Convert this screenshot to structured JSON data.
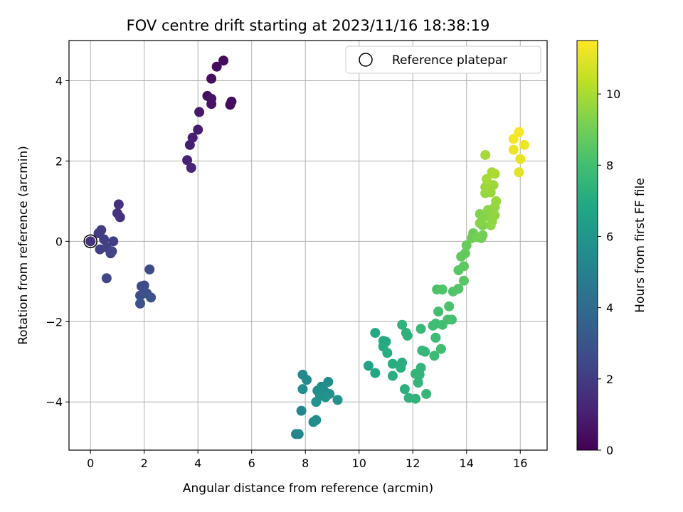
{
  "chart_data": {
    "type": "scatter",
    "title": "FOV centre drift starting at 2023/11/16 18:38:19",
    "xlabel": "Angular distance from reference (arcmin)",
    "ylabel": "Rotation from reference (arcmin)",
    "xlim": [
      -0.8,
      17
    ],
    "ylim": [
      -5.2,
      5
    ],
    "xticks": [
      0,
      2,
      4,
      6,
      8,
      10,
      12,
      14,
      16
    ],
    "yticks": [
      -4,
      -2,
      0,
      2,
      4
    ],
    "xtick_labels": [
      "0",
      "2",
      "4",
      "6",
      "8",
      "10",
      "12",
      "14",
      "16"
    ],
    "ytick_labels": [
      "−4",
      "−2",
      "0",
      "2",
      "4"
    ],
    "grid": true,
    "legend": {
      "position": "top-right",
      "entries": [
        "Reference platepar"
      ]
    },
    "colorbar": {
      "label": "Hours from first FF file",
      "min": 0,
      "max": 11.5,
      "colormap": "viridis",
      "ticks": [
        0,
        2,
        4,
        6,
        8,
        10
      ],
      "tick_labels": [
        "0",
        "2",
        "4",
        "6",
        "8",
        "10"
      ]
    },
    "reference_point": {
      "x": 0,
      "y": 0
    },
    "points": [
      {
        "x": 4.95,
        "y": 4.5,
        "h": 0.3
      },
      {
        "x": 4.7,
        "y": 4.35,
        "h": 0.4
      },
      {
        "x": 4.5,
        "y": 4.05,
        "h": 0.5
      },
      {
        "x": 4.35,
        "y": 3.62,
        "h": 0.5
      },
      {
        "x": 4.5,
        "y": 3.55,
        "h": 0.6
      },
      {
        "x": 4.5,
        "y": 3.42,
        "h": 0.6
      },
      {
        "x": 5.25,
        "y": 3.48,
        "h": 0.4
      },
      {
        "x": 5.2,
        "y": 3.4,
        "h": 0.4
      },
      {
        "x": 4.05,
        "y": 3.22,
        "h": 0.8
      },
      {
        "x": 4.0,
        "y": 2.78,
        "h": 0.9
      },
      {
        "x": 3.8,
        "y": 2.58,
        "h": 1.0
      },
      {
        "x": 3.7,
        "y": 2.4,
        "h": 1.0
      },
      {
        "x": 3.6,
        "y": 2.02,
        "h": 1.1
      },
      {
        "x": 3.75,
        "y": 1.83,
        "h": 1.2
      },
      {
        "x": 1.05,
        "y": 0.92,
        "h": 1.6
      },
      {
        "x": 1.0,
        "y": 0.7,
        "h": 1.7
      },
      {
        "x": 1.1,
        "y": 0.6,
        "h": 1.7
      },
      {
        "x": 0.4,
        "y": 0.28,
        "h": 2.0
      },
      {
        "x": 0.3,
        "y": 0.2,
        "h": 2.0
      },
      {
        "x": 0.5,
        "y": 0.05,
        "h": 2.1
      },
      {
        "x": 0.85,
        "y": 0.0,
        "h": 2.1
      },
      {
        "x": 0.35,
        "y": -0.2,
        "h": 2.2
      },
      {
        "x": 0.6,
        "y": -0.15,
        "h": 2.2
      },
      {
        "x": 0.75,
        "y": -0.3,
        "h": 2.3
      },
      {
        "x": 0.8,
        "y": -0.25,
        "h": 2.3
      },
      {
        "x": 0.6,
        "y": -0.92,
        "h": 2.4
      },
      {
        "x": 2.2,
        "y": -0.7,
        "h": 2.6
      },
      {
        "x": 2.0,
        "y": -1.1,
        "h": 2.7
      },
      {
        "x": 1.9,
        "y": -1.12,
        "h": 2.7
      },
      {
        "x": 1.85,
        "y": -1.35,
        "h": 2.8
      },
      {
        "x": 2.1,
        "y": -1.3,
        "h": 2.8
      },
      {
        "x": 2.25,
        "y": -1.4,
        "h": 2.9
      },
      {
        "x": 1.85,
        "y": -1.55,
        "h": 2.9
      },
      {
        "x": 7.9,
        "y": -3.32,
        "h": 5.4
      },
      {
        "x": 8.05,
        "y": -3.45,
        "h": 5.4
      },
      {
        "x": 7.9,
        "y": -3.68,
        "h": 5.5
      },
      {
        "x": 8.85,
        "y": -3.5,
        "h": 5.6
      },
      {
        "x": 8.6,
        "y": -3.62,
        "h": 5.6
      },
      {
        "x": 8.45,
        "y": -3.72,
        "h": 5.6
      },
      {
        "x": 8.7,
        "y": -3.72,
        "h": 5.7
      },
      {
        "x": 8.9,
        "y": -3.8,
        "h": 5.7
      },
      {
        "x": 8.55,
        "y": -3.85,
        "h": 5.7
      },
      {
        "x": 8.75,
        "y": -3.88,
        "h": 5.8
      },
      {
        "x": 9.2,
        "y": -3.95,
        "h": 5.8
      },
      {
        "x": 8.4,
        "y": -4.0,
        "h": 5.8
      },
      {
        "x": 7.85,
        "y": -4.22,
        "h": 5.3
      },
      {
        "x": 8.4,
        "y": -4.45,
        "h": 5.5
      },
      {
        "x": 8.3,
        "y": -4.5,
        "h": 5.5
      },
      {
        "x": 7.65,
        "y": -4.8,
        "h": 5.2
      },
      {
        "x": 7.75,
        "y": -4.8,
        "h": 5.2
      },
      {
        "x": 10.6,
        "y": -2.28,
        "h": 6.9
      },
      {
        "x": 10.35,
        "y": -3.1,
        "h": 6.6
      },
      {
        "x": 10.6,
        "y": -3.28,
        "h": 6.7
      },
      {
        "x": 10.9,
        "y": -2.48,
        "h": 7.0
      },
      {
        "x": 11.0,
        "y": -2.5,
        "h": 7.0
      },
      {
        "x": 10.9,
        "y": -2.62,
        "h": 7.0
      },
      {
        "x": 11.05,
        "y": -2.78,
        "h": 7.1
      },
      {
        "x": 11.25,
        "y": -3.05,
        "h": 7.1
      },
      {
        "x": 11.6,
        "y": -3.02,
        "h": 7.2
      },
      {
        "x": 11.55,
        "y": -3.15,
        "h": 7.2
      },
      {
        "x": 11.25,
        "y": -3.35,
        "h": 7.2
      },
      {
        "x": 11.75,
        "y": -2.28,
        "h": 7.3
      },
      {
        "x": 11.6,
        "y": -2.08,
        "h": 7.4
      },
      {
        "x": 11.8,
        "y": -2.35,
        "h": 7.3
      },
      {
        "x": 11.7,
        "y": -3.68,
        "h": 7.3
      },
      {
        "x": 11.85,
        "y": -3.9,
        "h": 7.4
      },
      {
        "x": 12.1,
        "y": -3.92,
        "h": 7.4
      },
      {
        "x": 12.1,
        "y": -3.3,
        "h": 7.5
      },
      {
        "x": 12.3,
        "y": -3.15,
        "h": 7.5
      },
      {
        "x": 12.25,
        "y": -3.32,
        "h": 7.5
      },
      {
        "x": 12.2,
        "y": -3.52,
        "h": 7.5
      },
      {
        "x": 12.5,
        "y": -3.8,
        "h": 7.6
      },
      {
        "x": 12.35,
        "y": -2.72,
        "h": 7.6
      },
      {
        "x": 12.45,
        "y": -2.75,
        "h": 7.6
      },
      {
        "x": 12.3,
        "y": -2.18,
        "h": 7.7
      },
      {
        "x": 12.8,
        "y": -2.85,
        "h": 7.8
      },
      {
        "x": 12.85,
        "y": -2.4,
        "h": 7.8
      },
      {
        "x": 12.75,
        "y": -2.1,
        "h": 7.9
      },
      {
        "x": 12.85,
        "y": -2.05,
        "h": 7.9
      },
      {
        "x": 13.05,
        "y": -2.68,
        "h": 8.0
      },
      {
        "x": 12.95,
        "y": -1.75,
        "h": 8.0
      },
      {
        "x": 13.1,
        "y": -2.08,
        "h": 8.0
      },
      {
        "x": 13.3,
        "y": -1.95,
        "h": 8.1
      },
      {
        "x": 13.45,
        "y": -1.95,
        "h": 8.1
      },
      {
        "x": 13.35,
        "y": -1.62,
        "h": 8.2
      },
      {
        "x": 12.9,
        "y": -1.2,
        "h": 8.2
      },
      {
        "x": 13.1,
        "y": -1.2,
        "h": 8.3
      },
      {
        "x": 13.5,
        "y": -1.25,
        "h": 8.3
      },
      {
        "x": 13.7,
        "y": -1.18,
        "h": 8.4
      },
      {
        "x": 13.9,
        "y": -0.98,
        "h": 8.5
      },
      {
        "x": 13.7,
        "y": -0.72,
        "h": 8.5
      },
      {
        "x": 13.9,
        "y": -0.62,
        "h": 8.6
      },
      {
        "x": 13.8,
        "y": -0.38,
        "h": 8.7
      },
      {
        "x": 13.95,
        "y": -0.3,
        "h": 8.7
      },
      {
        "x": 14.0,
        "y": -0.1,
        "h": 8.8
      },
      {
        "x": 14.2,
        "y": 0.08,
        "h": 8.9
      },
      {
        "x": 14.25,
        "y": 0.2,
        "h": 8.9
      },
      {
        "x": 14.55,
        "y": 0.08,
        "h": 9.0
      },
      {
        "x": 14.6,
        "y": 0.15,
        "h": 9.0
      },
      {
        "x": 14.4,
        "y": 0.1,
        "h": 9.1
      },
      {
        "x": 14.6,
        "y": 0.4,
        "h": 9.2
      },
      {
        "x": 14.5,
        "y": 0.68,
        "h": 9.3
      },
      {
        "x": 14.7,
        "y": 0.62,
        "h": 9.4
      },
      {
        "x": 14.5,
        "y": 0.45,
        "h": 9.4
      },
      {
        "x": 14.8,
        "y": 0.78,
        "h": 9.5
      },
      {
        "x": 14.9,
        "y": 0.4,
        "h": 9.5
      },
      {
        "x": 14.95,
        "y": 0.5,
        "h": 9.6
      },
      {
        "x": 15.05,
        "y": 0.65,
        "h": 9.6
      },
      {
        "x": 15.05,
        "y": 0.85,
        "h": 9.6
      },
      {
        "x": 15.1,
        "y": 1.0,
        "h": 9.7
      },
      {
        "x": 14.7,
        "y": 1.2,
        "h": 9.7
      },
      {
        "x": 14.9,
        "y": 1.22,
        "h": 9.7
      },
      {
        "x": 14.7,
        "y": 1.35,
        "h": 9.8
      },
      {
        "x": 15.0,
        "y": 1.4,
        "h": 9.8
      },
      {
        "x": 14.75,
        "y": 1.55,
        "h": 9.9
      },
      {
        "x": 14.95,
        "y": 1.72,
        "h": 9.9
      },
      {
        "x": 15.05,
        "y": 1.68,
        "h": 10.0
      },
      {
        "x": 14.7,
        "y": 2.15,
        "h": 9.9
      },
      {
        "x": 15.95,
        "y": 1.72,
        "h": 11.0
      },
      {
        "x": 16.0,
        "y": 2.05,
        "h": 11.1
      },
      {
        "x": 15.75,
        "y": 2.28,
        "h": 11.2
      },
      {
        "x": 16.15,
        "y": 2.4,
        "h": 11.2
      },
      {
        "x": 15.75,
        "y": 2.55,
        "h": 11.3
      },
      {
        "x": 15.95,
        "y": 2.72,
        "h": 11.4
      }
    ]
  }
}
